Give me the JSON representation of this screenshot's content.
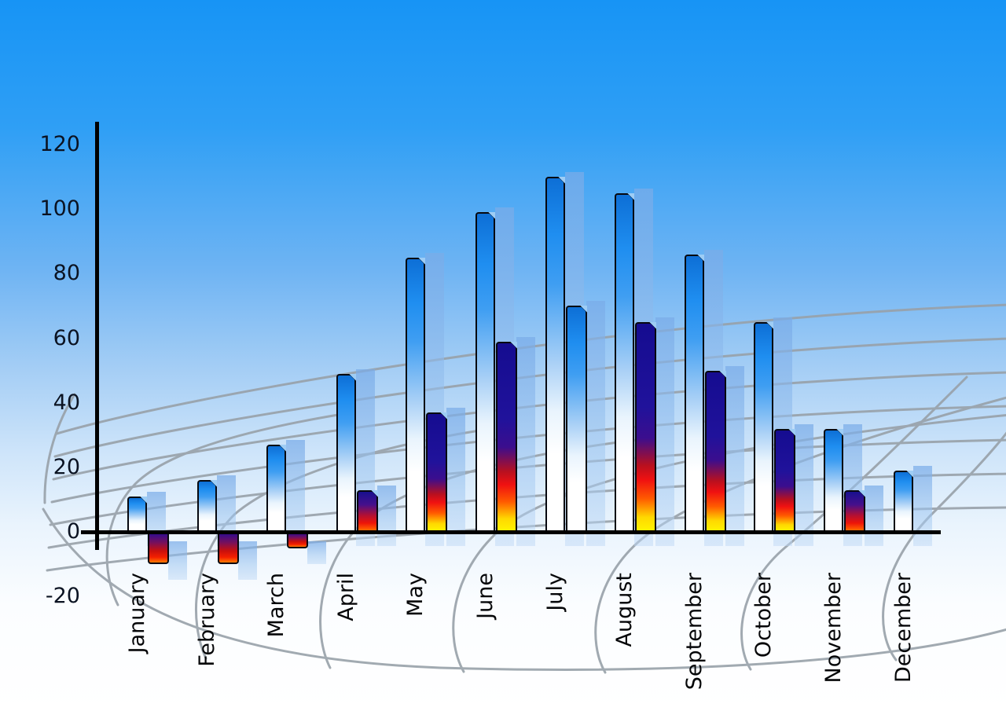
{
  "chart_data": {
    "type": "bar",
    "title": "",
    "xlabel": "",
    "ylabel": "",
    "categories": [
      "January",
      "February",
      "March",
      "April",
      "May",
      "June",
      "July",
      "August",
      "September",
      "October",
      "November",
      "December"
    ],
    "series": [
      {
        "name": "series-1-blue",
        "style": "blue-gradient",
        "values": [
          11,
          16,
          27,
          49,
          85,
          99,
          110,
          105,
          86,
          65,
          32,
          19
        ]
      },
      {
        "name": "series-2-fire",
        "style": "fire-gradient",
        "values": [
          -10,
          -10,
          -5,
          13,
          37,
          59,
          70,
          65,
          50,
          32,
          13,
          null
        ],
        "point_styles": [
          "fire",
          "fire",
          "fire",
          "fire",
          "fire",
          "fire",
          "blue-gradient",
          "fire",
          "fire",
          "fire",
          "fire",
          null
        ]
      }
    ],
    "y_ticks": [
      120,
      100,
      80,
      60,
      40,
      20,
      0,
      -20
    ],
    "ylim": [
      -20,
      120
    ],
    "legend": "none",
    "grid": "gray perspective mesh floor behind bars",
    "background": "blue sky gradient fading to white"
  },
  "colors": {
    "sky_top": "#1794f5",
    "bar_blue_top": "#0e74da",
    "fire_navy": "#1c11a0",
    "fire_red": "#ee1410",
    "fire_yellow": "#fff600",
    "echo_bar": "#a9c9ee",
    "mesh_line": "#98a1a9",
    "axis": "#000000",
    "tick_text": "#0b1322"
  }
}
